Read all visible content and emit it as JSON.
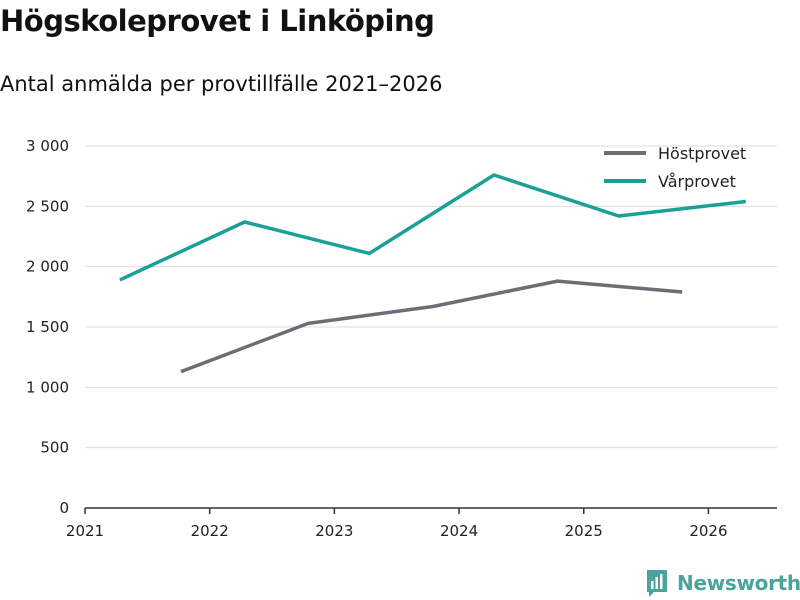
{
  "chart_data": {
    "type": "line",
    "title": "Högskoleprovet i Linköping",
    "subtitle": "Antal anmälda per provtillfälle 2021–2026",
    "xlabel": "",
    "ylabel": "",
    "xlim": [
      2021,
      2026.55
    ],
    "ylim": [
      0,
      3000
    ],
    "x_ticks": [
      2021,
      2022,
      2023,
      2024,
      2025,
      2026
    ],
    "y_ticks": [
      0,
      500,
      1000,
      1500,
      2000,
      2500,
      3000
    ],
    "y_tick_labels": [
      "0",
      "500",
      "1 000",
      "1 500",
      "2 000",
      "2 500",
      "3 000"
    ],
    "grid": true,
    "legend_position": "top-right",
    "series": [
      {
        "name": "Höstprovet",
        "color": "#6e6d75",
        "x": [
          2021.77,
          2022.79,
          2023.79,
          2024.79,
          2025.79
        ],
        "y": [
          1130,
          1530,
          1670,
          1880,
          1790
        ]
      },
      {
        "name": "Vårprovet",
        "color": "#1aa097",
        "x": [
          2021.28,
          2022.28,
          2023.28,
          2024.28,
          2025.28,
          2026.3
        ],
        "y": [
          1890,
          2370,
          2110,
          2760,
          2420,
          2540
        ]
      }
    ]
  },
  "brand": {
    "name": "Newsworthy",
    "icon": "bar-chart-logo-icon",
    "color": "#4aa39c"
  }
}
